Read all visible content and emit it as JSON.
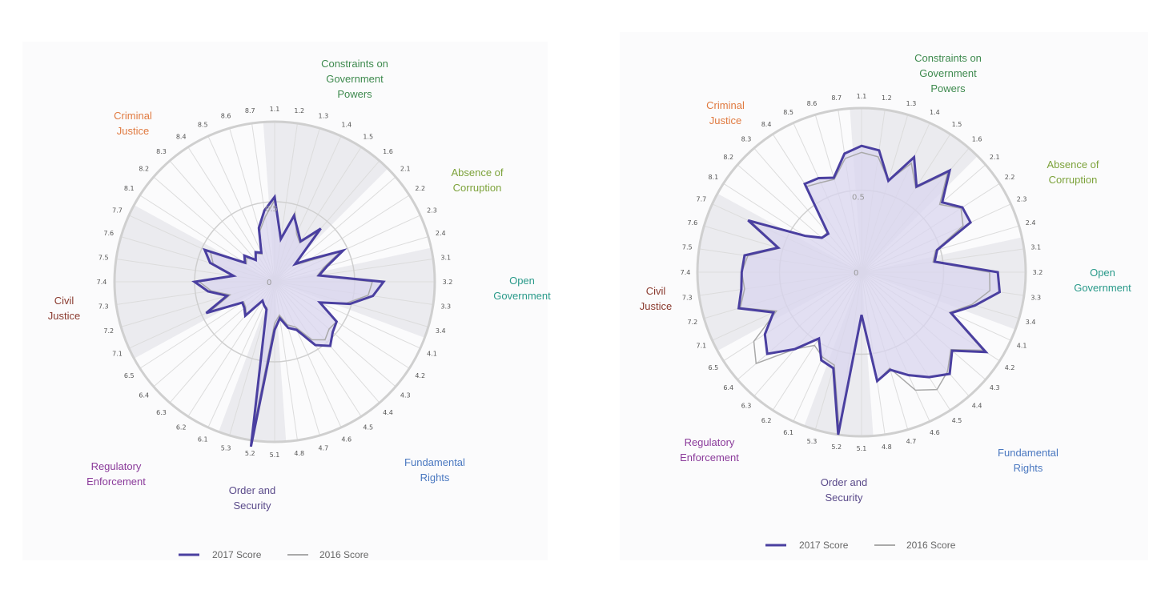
{
  "colors": {
    "score_2017": "#4a3fa0",
    "score_2016": "#a9a9a9",
    "fill_2017": "#d9d6ef",
    "shade": "#ebebef"
  },
  "legend": {
    "label_2017": "2017 Score",
    "label_2016": "2016 Score"
  },
  "chart_data": [
    {
      "type": "radar",
      "axes": [
        "1.1",
        "1.2",
        "1.3",
        "1.4",
        "1.5",
        "1.6",
        "2.1",
        "2.2",
        "2.3",
        "2.4",
        "3.1",
        "3.2",
        "3.3",
        "3.4",
        "4.1",
        "4.2",
        "4.3",
        "4.4",
        "4.5",
        "4.6",
        "4.7",
        "4.8",
        "5.1",
        "5.2",
        "5.3",
        "6.1",
        "6.2",
        "6.3",
        "6.4",
        "6.5",
        "7.1",
        "7.2",
        "7.3",
        "7.4",
        "7.5",
        "7.6",
        "7.7",
        "8.1",
        "8.2",
        "8.3",
        "8.4",
        "8.5",
        "8.6",
        "8.7"
      ],
      "scale_labels": [
        "0",
        "0.5"
      ],
      "rlim": [
        0,
        1
      ],
      "factors": [
        {
          "label": [
            "Constraints on",
            "Government",
            "Powers"
          ],
          "color": "#3e8a4e"
        },
        {
          "label": [
            "Absence of",
            "Corruption"
          ],
          "color": "#7ca23a"
        },
        {
          "label": [
            "Open",
            "Government"
          ],
          "color": "#2a9a8a"
        },
        {
          "label": [
            "Fundamental",
            "Rights"
          ],
          "color": "#4a78c0"
        },
        {
          "label": [
            "Order and",
            "Security"
          ],
          "color": "#5a4a8a"
        },
        {
          "label": [
            "Regulatory",
            "Enforcement"
          ],
          "color": "#8a3a9a"
        },
        {
          "label": [
            "Civil",
            "Justice"
          ],
          "color": "#8a3a2e"
        },
        {
          "label": [
            "Criminal",
            "Justice"
          ],
          "color": "#e07a40"
        }
      ],
      "series": [
        {
          "name": "2017 Score",
          "values": [
            0.53,
            0.27,
            0.43,
            0.35,
            0.3,
            0.44,
            0.17,
            0.26,
            0.47,
            0.34,
            0.28,
            0.68,
            0.62,
            0.49,
            0.31,
            0.46,
            0.48,
            0.53,
            0.47,
            0.33,
            0.3,
            0.23,
            0.3,
            1.04,
            0.18,
            0.16,
            0.14,
            0.28,
            0.25,
            0.24,
            0.47,
            0.31,
            0.42,
            0.5,
            0.26,
            0.42,
            0.48,
            0.22,
            0.25,
            0.18,
            0.22,
            0.2,
            0.35,
            0.45
          ]
        },
        {
          "name": "2016 Score",
          "values": [
            0.51,
            0.26,
            0.45,
            0.33,
            0.29,
            0.41,
            0.16,
            0.23,
            0.45,
            0.32,
            0.27,
            0.61,
            0.59,
            0.47,
            0.32,
            0.46,
            0.45,
            0.48,
            0.43,
            0.31,
            0.28,
            0.21,
            0.26,
            0.93,
            0.17,
            0.16,
            0.14,
            0.27,
            0.24,
            0.23,
            0.44,
            0.29,
            0.4,
            0.47,
            0.25,
            0.4,
            0.44,
            0.21,
            0.23,
            0.18,
            0.21,
            0.19,
            0.33,
            0.41
          ]
        }
      ]
    },
    {
      "type": "radar",
      "axes": [
        "1.1",
        "1.2",
        "1.3",
        "1.4",
        "1.5",
        "1.6",
        "2.1",
        "2.2",
        "2.3",
        "2.4",
        "3.1",
        "3.2",
        "3.3",
        "3.4",
        "4.1",
        "4.2",
        "4.3",
        "4.4",
        "4.5",
        "4.6",
        "4.7",
        "4.8",
        "5.1",
        "5.2",
        "5.3",
        "6.1",
        "6.2",
        "6.3",
        "6.4",
        "6.5",
        "7.1",
        "7.2",
        "7.3",
        "7.4",
        "7.5",
        "7.6",
        "7.7",
        "8.1",
        "8.2",
        "8.3",
        "8.4",
        "8.5",
        "8.6",
        "8.7"
      ],
      "scale_labels": [
        "0",
        "0.5"
      ],
      "rlim": [
        0,
        1
      ],
      "factors": [
        {
          "label": [
            "Constraints on",
            "Government",
            "Powers"
          ],
          "color": "#3e8a4e"
        },
        {
          "label": [
            "Absence of",
            "Corruption"
          ],
          "color": "#7ca23a"
        },
        {
          "label": [
            "Open",
            "Government"
          ],
          "color": "#2a9a8a"
        },
        {
          "label": [
            "Fundamental",
            "Rights"
          ],
          "color": "#4a78c0"
        },
        {
          "label": [
            "Order and",
            "Security"
          ],
          "color": "#5a4a8a"
        },
        {
          "label": [
            "Regulatory",
            "Enforcement"
          ],
          "color": "#8a3a9a"
        },
        {
          "label": [
            "Civil",
            "Justice"
          ],
          "color": "#8a3a2e"
        },
        {
          "label": [
            "Criminal",
            "Justice"
          ],
          "color": "#e07a40"
        }
      ],
      "series": [
        {
          "name": "2017 Score",
          "values": [
            0.77,
            0.75,
            0.58,
            0.77,
            0.62,
            0.82,
            0.65,
            0.73,
            0.73,
            0.48,
            0.45,
            0.83,
            0.85,
            0.72,
            0.6,
            0.9,
            0.73,
            0.82,
            0.76,
            0.69,
            0.62,
            0.67,
            0.26,
            1.0,
            0.61,
            0.59,
            0.48,
            0.62,
            0.76,
            0.7,
            0.59,
            0.78,
            0.74,
            0.73,
            0.72,
            0.53,
            0.76,
            0.41,
            0.32,
            0.31,
            0.64,
            0.63,
            0.6,
            0.73
          ]
        },
        {
          "name": "2016 Score",
          "values": [
            0.73,
            0.71,
            0.58,
            0.73,
            0.61,
            0.8,
            0.63,
            0.72,
            0.68,
            0.47,
            0.44,
            0.78,
            0.79,
            0.7,
            0.59,
            0.88,
            0.72,
            0.8,
            0.85,
            0.79,
            0.61,
            0.67,
            0.26,
            0.96,
            0.59,
            0.57,
            0.53,
            0.62,
            0.85,
            0.78,
            0.57,
            0.77,
            0.72,
            0.73,
            0.7,
            0.52,
            0.74,
            0.4,
            0.32,
            0.32,
            0.62,
            0.6,
            0.59,
            0.7
          ]
        }
      ]
    }
  ]
}
